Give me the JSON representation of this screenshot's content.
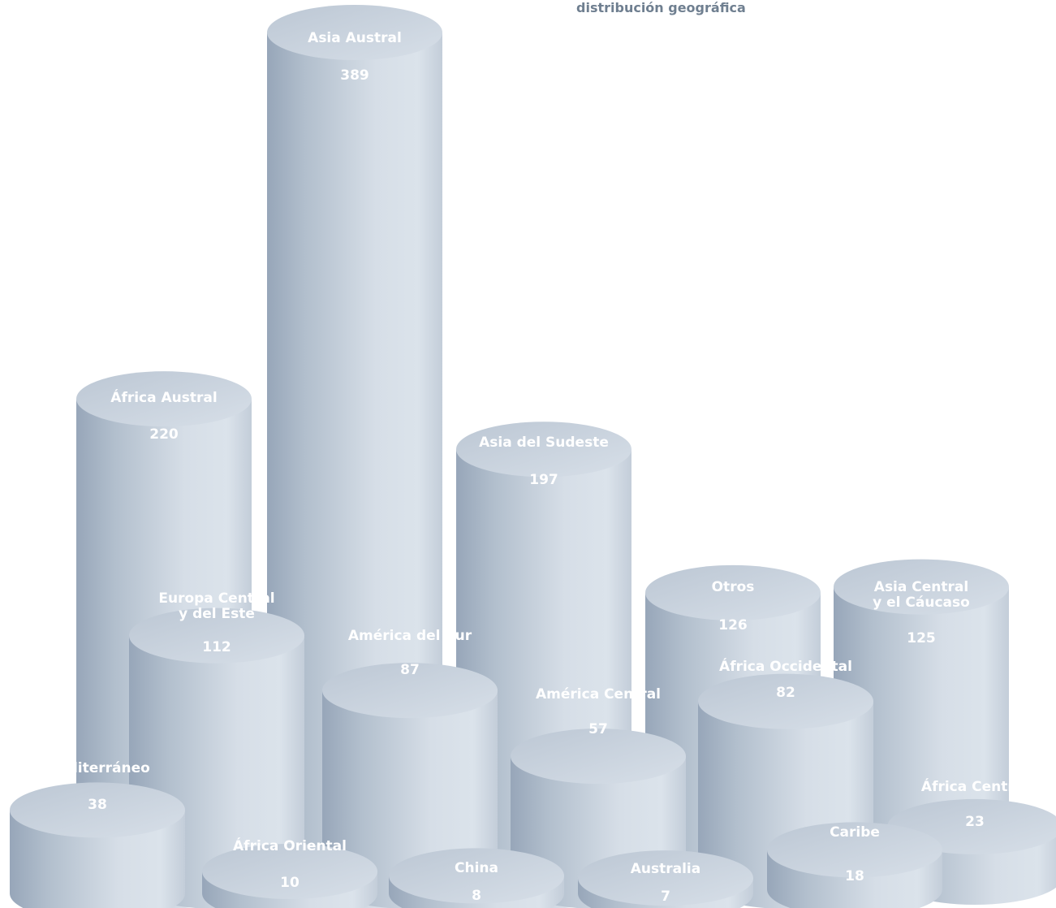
{
  "chart_data": {
    "type": "bar",
    "title": "distribución geográfica",
    "categories": [
      "Asia Austral",
      "África Austral",
      "Asia del Sudeste",
      "Otros",
      "Asia Central\ny el Cáucaso",
      "Europa Central\ny del Este",
      "América del Sur",
      "África Occidental",
      "América Central",
      "Mediterráneo",
      "África Central",
      "Caribe",
      "África Oriental",
      "China",
      "Australia"
    ],
    "values": [
      389,
      220,
      197,
      126,
      125,
      112,
      87,
      82,
      57,
      38,
      23,
      18,
      10,
      8,
      7
    ],
    "value_labels": [
      "389",
      "220",
      "197",
      "126",
      "125",
      "112",
      "87",
      "82",
      "57",
      "38",
      "23",
      "18",
      "10",
      "8",
      "7"
    ],
    "colors": {
      "cylinder_dark": "#a2b0c2",
      "cylinder_mid": "#c5d0dc",
      "cylinder_light": "#d9e1ea",
      "cylinder_top": "#cfd8e2",
      "label_text": "#ffffff",
      "title_text": "#6f7f90"
    }
  }
}
